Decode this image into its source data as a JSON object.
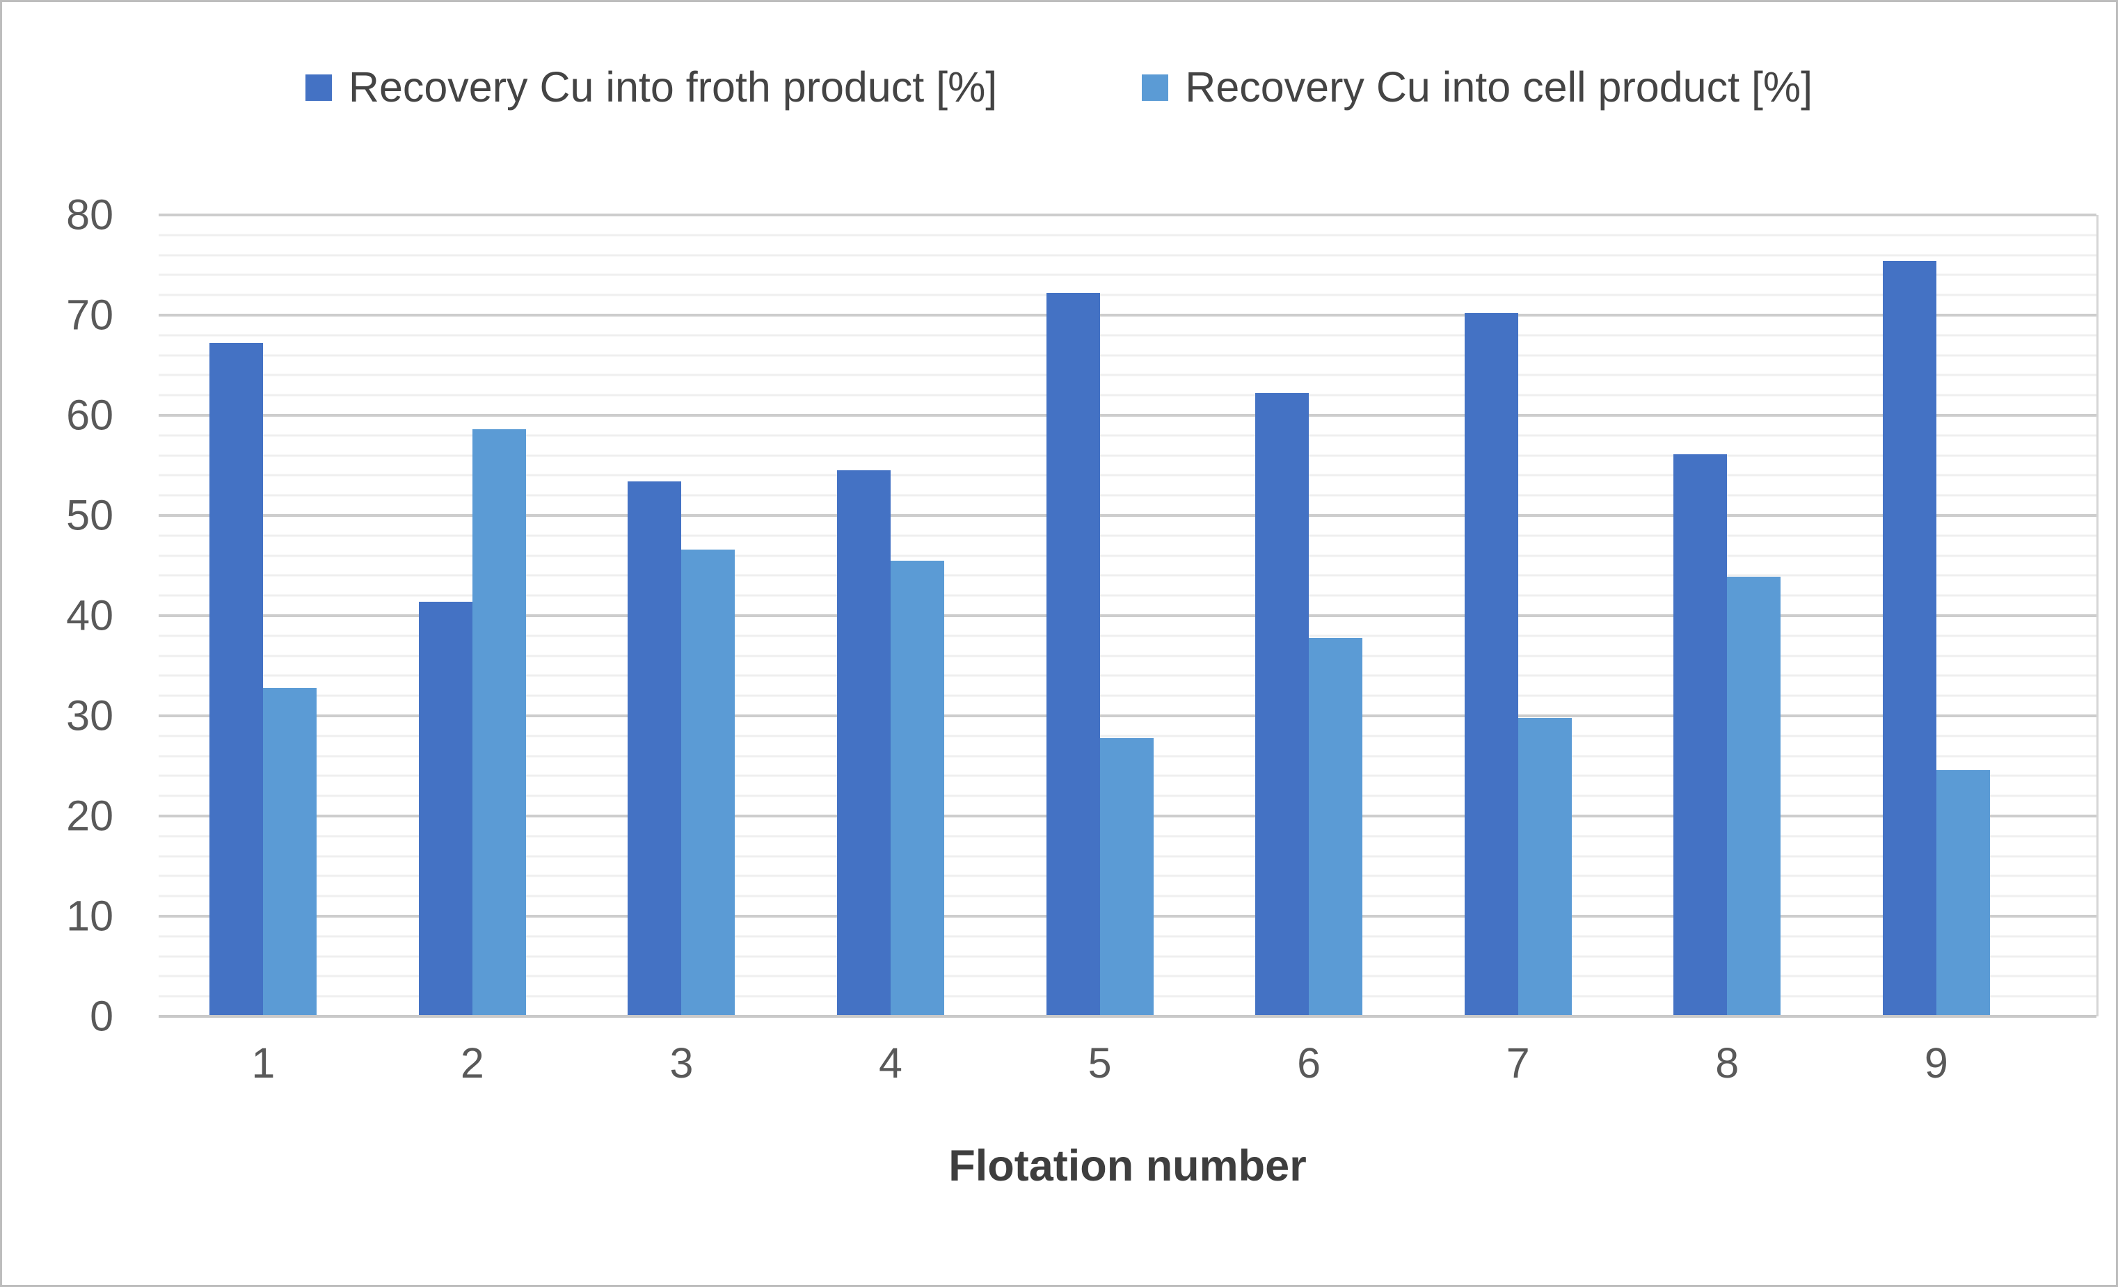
{
  "chart_data": {
    "type": "bar",
    "title": "",
    "xlabel": "Flotation number",
    "ylabel": "",
    "categories": [
      "1",
      "2",
      "3",
      "4",
      "5",
      "6",
      "7",
      "8",
      "9"
    ],
    "series": [
      {
        "name": "Recovery Cu into froth product [%]",
        "color": "#4472C4",
        "values": [
          67.2,
          41.4,
          53.4,
          54.5,
          72.2,
          62.2,
          70.2,
          56.1,
          75.4
        ]
      },
      {
        "name": "Recovery Cu into cell product [%]",
        "color": "#5B9BD5",
        "values": [
          32.8,
          58.6,
          46.6,
          45.5,
          27.8,
          37.8,
          29.8,
          43.9,
          24.6
        ]
      }
    ],
    "ylim": [
      0,
      80
    ],
    "yticks": [
      0,
      10,
      20,
      30,
      40,
      50,
      60,
      70,
      80
    ],
    "minor_grid_step": 2,
    "major_grid_step": 10,
    "grid": "on",
    "legend_position": "top"
  }
}
